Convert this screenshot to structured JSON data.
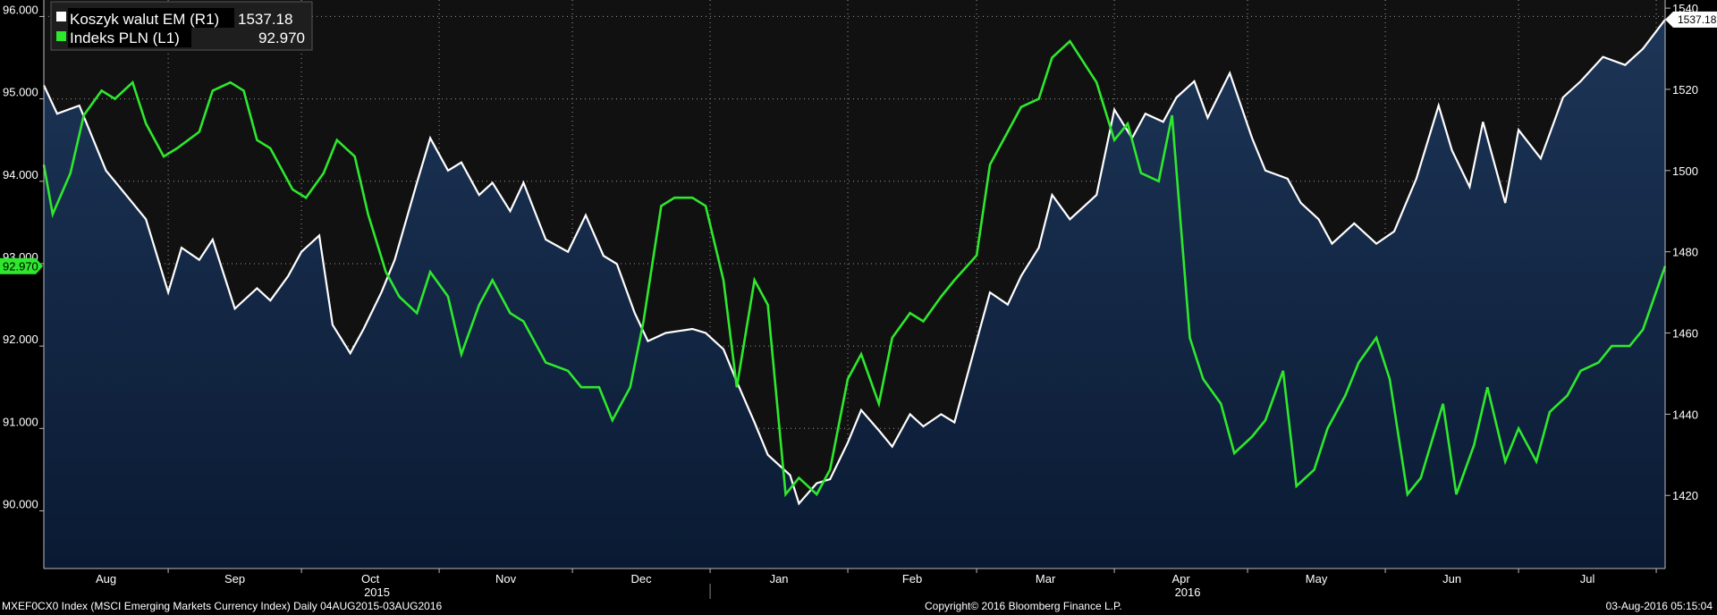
{
  "footer": {
    "index_info": "MXEF0CX0 Index (MSCI Emerging Markets Currency Index)  Daily 04AUG2015-03AUG2016",
    "copyright": "Copyright© 2016 Bloomberg Finance L.P.",
    "timestamp": "03-Aug-2016 05:15:04"
  },
  "legend": {
    "em_label": "Koszyk walut EM (R1)",
    "em_value": "1537.18",
    "pln_label": "Indeks PLN (L1)",
    "pln_value": "92.970"
  },
  "markers": {
    "left_last": "92.970",
    "right_last": "1537.18"
  },
  "colors": {
    "background": "#000000",
    "area_top": "#1d3557",
    "area_bottom": "#0a1a33",
    "em_line": "#ffffff",
    "pln_line": "#2ee82e"
  },
  "chart_data": {
    "type": "line",
    "title": "",
    "x_range": [
      "2015-08-04",
      "2016-08-03"
    ],
    "month_ticks": [
      "Aug",
      "Sep",
      "Oct",
      "Nov",
      "Dec",
      "Jan",
      "Feb",
      "Mar",
      "Apr",
      "May",
      "Jun",
      "Jul"
    ],
    "year_labels": [
      "2015",
      "2016"
    ],
    "left_axis": {
      "ticks": [
        "96.000",
        "95.000",
        "94.000",
        "93.000",
        "92.000",
        "91.000",
        "90.000"
      ],
      "range": [
        89.3,
        96.2
      ]
    },
    "right_axis": {
      "ticks": [
        "1540",
        "1520",
        "1500",
        "1480",
        "1460",
        "1440",
        "1420"
      ],
      "range": [
        1402,
        1542
      ]
    },
    "grid": true,
    "legend_position": "top-left",
    "series": [
      {
        "name": "Koszyk walut EM (R1)",
        "axis": "right",
        "style": "area",
        "points": [
          [
            "2015-08-04",
            1521
          ],
          [
            "2015-08-07",
            1514
          ],
          [
            "2015-08-12",
            1516
          ],
          [
            "2015-08-18",
            1500
          ],
          [
            "2015-08-24",
            1492
          ],
          [
            "2015-08-27",
            1488
          ],
          [
            "2015-09-01",
            1470
          ],
          [
            "2015-09-04",
            1481
          ],
          [
            "2015-09-08",
            1478
          ],
          [
            "2015-09-11",
            1483
          ],
          [
            "2015-09-16",
            1466
          ],
          [
            "2015-09-21",
            1471
          ],
          [
            "2015-09-24",
            1468
          ],
          [
            "2015-09-28",
            1474
          ],
          [
            "2015-10-01",
            1480
          ],
          [
            "2015-10-05",
            1484
          ],
          [
            "2015-10-08",
            1462
          ],
          [
            "2015-10-12",
            1455
          ],
          [
            "2015-10-15",
            1461
          ],
          [
            "2015-10-19",
            1470
          ],
          [
            "2015-10-22",
            1478
          ],
          [
            "2015-10-27",
            1497
          ],
          [
            "2015-10-30",
            1508
          ],
          [
            "2015-11-03",
            1500
          ],
          [
            "2015-11-06",
            1502
          ],
          [
            "2015-11-10",
            1494
          ],
          [
            "2015-11-13",
            1497
          ],
          [
            "2015-11-17",
            1490
          ],
          [
            "2015-11-20",
            1497
          ],
          [
            "2015-11-25",
            1483
          ],
          [
            "2015-11-30",
            1480
          ],
          [
            "2015-12-04",
            1489
          ],
          [
            "2015-12-08",
            1479
          ],
          [
            "2015-12-11",
            1477
          ],
          [
            "2015-12-15",
            1465
          ],
          [
            "2015-12-18",
            1458
          ],
          [
            "2015-12-22",
            1460
          ],
          [
            "2015-12-28",
            1461
          ],
          [
            "2015-12-31",
            1460
          ],
          [
            "2016-01-04",
            1456
          ],
          [
            "2016-01-07",
            1448
          ],
          [
            "2016-01-11",
            1438
          ],
          [
            "2016-01-14",
            1430
          ],
          [
            "2016-01-19",
            1425
          ],
          [
            "2016-01-21",
            1418
          ],
          [
            "2016-01-25",
            1423
          ],
          [
            "2016-01-28",
            1424
          ],
          [
            "2016-02-01",
            1433
          ],
          [
            "2016-02-04",
            1441
          ],
          [
            "2016-02-08",
            1436
          ],
          [
            "2016-02-11",
            1432
          ],
          [
            "2016-02-15",
            1440
          ],
          [
            "2016-02-18",
            1437
          ],
          [
            "2016-02-22",
            1440
          ],
          [
            "2016-02-25",
            1438
          ],
          [
            "2016-03-01",
            1458
          ],
          [
            "2016-03-04",
            1470
          ],
          [
            "2016-03-08",
            1467
          ],
          [
            "2016-03-11",
            1474
          ],
          [
            "2016-03-15",
            1481
          ],
          [
            "2016-03-18",
            1494
          ],
          [
            "2016-03-22",
            1488
          ],
          [
            "2016-03-28",
            1494
          ],
          [
            "2016-04-01",
            1515
          ],
          [
            "2016-04-05",
            1508
          ],
          [
            "2016-04-08",
            1514
          ],
          [
            "2016-04-12",
            1512
          ],
          [
            "2016-04-15",
            1518
          ],
          [
            "2016-04-19",
            1522
          ],
          [
            "2016-04-22",
            1513
          ],
          [
            "2016-04-27",
            1524
          ],
          [
            "2016-05-02",
            1508
          ],
          [
            "2016-05-05",
            1500
          ],
          [
            "2016-05-10",
            1498
          ],
          [
            "2016-05-13",
            1492
          ],
          [
            "2016-05-17",
            1488
          ],
          [
            "2016-05-20",
            1482
          ],
          [
            "2016-05-25",
            1487
          ],
          [
            "2016-05-30",
            1482
          ],
          [
            "2016-06-03",
            1485
          ],
          [
            "2016-06-08",
            1498
          ],
          [
            "2016-06-13",
            1516
          ],
          [
            "2016-06-16",
            1505
          ],
          [
            "2016-06-20",
            1496
          ],
          [
            "2016-06-23",
            1512
          ],
          [
            "2016-06-28",
            1492
          ],
          [
            "2016-07-01",
            1510
          ],
          [
            "2016-07-06",
            1503
          ],
          [
            "2016-07-11",
            1518
          ],
          [
            "2016-07-15",
            1522
          ],
          [
            "2016-07-20",
            1528
          ],
          [
            "2016-07-25",
            1526
          ],
          [
            "2016-07-29",
            1530
          ],
          [
            "2016-08-03",
            1537.18
          ]
        ]
      },
      {
        "name": "Indeks PLN (L1)",
        "axis": "left",
        "style": "line",
        "points": [
          [
            "2015-08-04",
            94.2
          ],
          [
            "2015-08-06",
            93.6
          ],
          [
            "2015-08-10",
            94.1
          ],
          [
            "2015-08-13",
            94.8
          ],
          [
            "2015-08-17",
            95.1
          ],
          [
            "2015-08-20",
            95.0
          ],
          [
            "2015-08-24",
            95.2
          ],
          [
            "2015-08-27",
            94.7
          ],
          [
            "2015-08-31",
            94.3
          ],
          [
            "2015-09-03",
            94.4
          ],
          [
            "2015-09-08",
            94.6
          ],
          [
            "2015-09-11",
            95.1
          ],
          [
            "2015-09-15",
            95.2
          ],
          [
            "2015-09-18",
            95.1
          ],
          [
            "2015-09-21",
            94.5
          ],
          [
            "2015-09-24",
            94.4
          ],
          [
            "2015-09-29",
            93.9
          ],
          [
            "2015-10-02",
            93.8
          ],
          [
            "2015-10-06",
            94.1
          ],
          [
            "2015-10-09",
            94.5
          ],
          [
            "2015-10-13",
            94.3
          ],
          [
            "2015-10-16",
            93.6
          ],
          [
            "2015-10-20",
            92.9
          ],
          [
            "2015-10-23",
            92.6
          ],
          [
            "2015-10-27",
            92.4
          ],
          [
            "2015-10-30",
            92.9
          ],
          [
            "2015-11-03",
            92.6
          ],
          [
            "2015-11-06",
            91.9
          ],
          [
            "2015-11-10",
            92.5
          ],
          [
            "2015-11-13",
            92.8
          ],
          [
            "2015-11-17",
            92.4
          ],
          [
            "2015-11-20",
            92.3
          ],
          [
            "2015-11-25",
            91.8
          ],
          [
            "2015-11-30",
            91.7
          ],
          [
            "2015-12-03",
            91.5
          ],
          [
            "2015-12-07",
            91.5
          ],
          [
            "2015-12-10",
            91.1
          ],
          [
            "2015-12-14",
            91.5
          ],
          [
            "2015-12-17",
            92.3
          ],
          [
            "2015-12-21",
            93.7
          ],
          [
            "2015-12-24",
            93.8
          ],
          [
            "2015-12-28",
            93.8
          ],
          [
            "2015-12-31",
            93.7
          ],
          [
            "2016-01-04",
            92.8
          ],
          [
            "2016-01-07",
            91.5
          ],
          [
            "2016-01-11",
            92.8
          ],
          [
            "2016-01-14",
            92.5
          ],
          [
            "2016-01-18",
            90.2
          ],
          [
            "2016-01-21",
            90.4
          ],
          [
            "2016-01-25",
            90.2
          ],
          [
            "2016-01-28",
            90.5
          ],
          [
            "2016-02-01",
            91.6
          ],
          [
            "2016-02-04",
            91.9
          ],
          [
            "2016-02-08",
            91.3
          ],
          [
            "2016-02-11",
            92.1
          ],
          [
            "2016-02-15",
            92.4
          ],
          [
            "2016-02-18",
            92.3
          ],
          [
            "2016-02-22",
            92.6
          ],
          [
            "2016-02-25",
            92.8
          ],
          [
            "2016-03-01",
            93.1
          ],
          [
            "2016-03-04",
            94.2
          ],
          [
            "2016-03-08",
            94.6
          ],
          [
            "2016-03-11",
            94.9
          ],
          [
            "2016-03-15",
            95.0
          ],
          [
            "2016-03-18",
            95.5
          ],
          [
            "2016-03-22",
            95.7
          ],
          [
            "2016-03-28",
            95.2
          ],
          [
            "2016-04-01",
            94.5
          ],
          [
            "2016-04-04",
            94.7
          ],
          [
            "2016-04-07",
            94.1
          ],
          [
            "2016-04-11",
            94.0
          ],
          [
            "2016-04-14",
            94.8
          ],
          [
            "2016-04-18",
            92.1
          ],
          [
            "2016-04-21",
            91.6
          ],
          [
            "2016-04-25",
            91.3
          ],
          [
            "2016-04-28",
            90.7
          ],
          [
            "2016-05-02",
            90.9
          ],
          [
            "2016-05-05",
            91.1
          ],
          [
            "2016-05-09",
            91.7
          ],
          [
            "2016-05-12",
            90.3
          ],
          [
            "2016-05-16",
            90.5
          ],
          [
            "2016-05-19",
            91.0
          ],
          [
            "2016-05-23",
            91.4
          ],
          [
            "2016-05-26",
            91.8
          ],
          [
            "2016-05-30",
            92.1
          ],
          [
            "2016-06-02",
            91.6
          ],
          [
            "2016-06-06",
            90.2
          ],
          [
            "2016-06-09",
            90.4
          ],
          [
            "2016-06-14",
            91.3
          ],
          [
            "2016-06-17",
            90.2
          ],
          [
            "2016-06-21",
            90.8
          ],
          [
            "2016-06-24",
            91.5
          ],
          [
            "2016-06-28",
            90.6
          ],
          [
            "2016-07-01",
            91.0
          ],
          [
            "2016-07-05",
            90.6
          ],
          [
            "2016-07-08",
            91.2
          ],
          [
            "2016-07-12",
            91.4
          ],
          [
            "2016-07-15",
            91.7
          ],
          [
            "2016-07-19",
            91.8
          ],
          [
            "2016-07-22",
            92.0
          ],
          [
            "2016-07-26",
            92.0
          ],
          [
            "2016-07-29",
            92.2
          ],
          [
            "2016-08-03",
            92.97
          ]
        ]
      }
    ]
  }
}
